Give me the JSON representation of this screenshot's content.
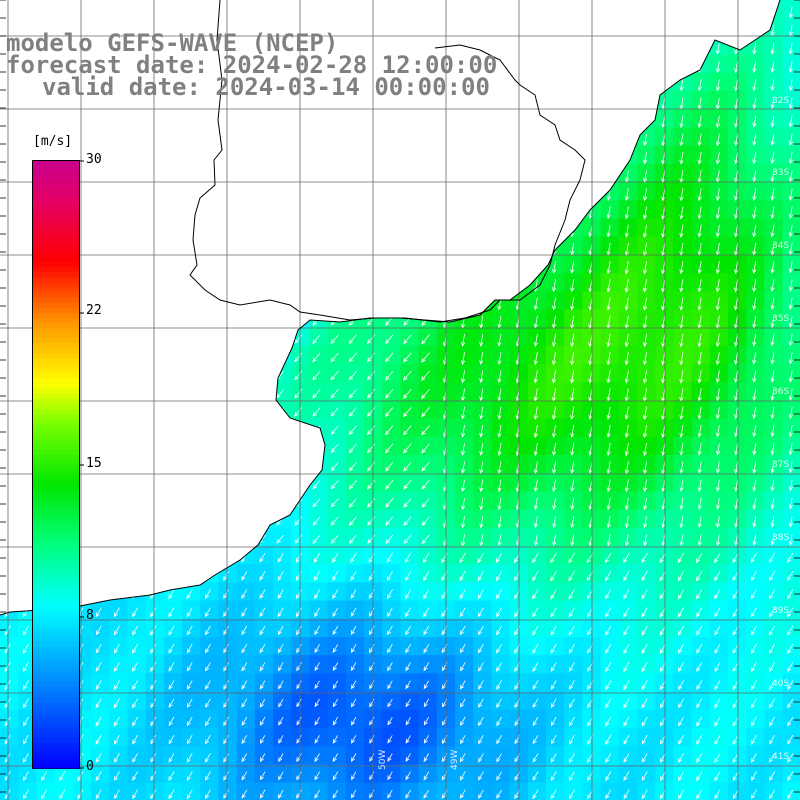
{
  "title": {
    "line1": "modelo GEFS-WAVE (NCEP)",
    "line2": "forecast date: 2024-02-28 12:00:00",
    "line3": "valid date: 2024-03-14 00:00:00"
  },
  "colorbar": {
    "unit": "[m/s]",
    "ticks": [
      "30",
      "22",
      "15",
      "8",
      "0"
    ],
    "colors": [
      "#0000ff",
      "#00a0ff",
      "#00ffff",
      "#00ff80",
      "#00ff00",
      "#80ff00",
      "#ffff00",
      "#ffa000",
      "#ff0000",
      "#ff0060",
      "#c00080"
    ]
  },
  "lat_labels": [
    "32S",
    "33S",
    "34S",
    "35S",
    "36S",
    "37S",
    "38S",
    "39S",
    "40S",
    "41S"
  ],
  "lon_labels": [
    "50W",
    "49W"
  ],
  "colors": {
    "land": "#ffffff",
    "grid": "#555555",
    "coast": "#000000",
    "arrow": "#ffffff",
    "title": "#808080"
  }
}
